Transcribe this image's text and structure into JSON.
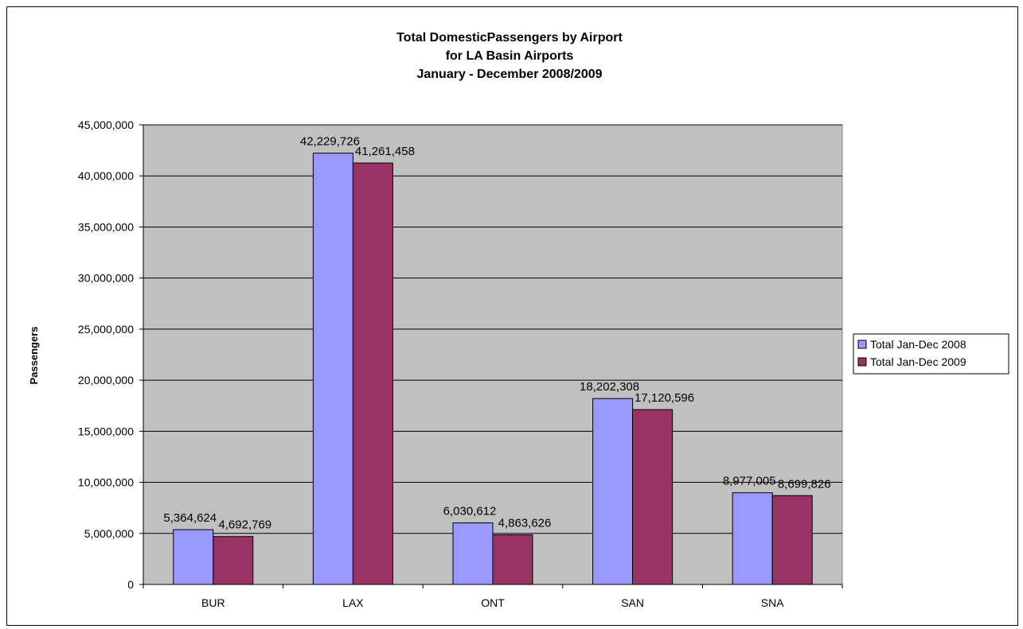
{
  "chart_data": {
    "type": "bar",
    "title": [
      "Total DomesticPassengers by Airport",
      "for LA Basin Airports",
      "January - December 2008/2009"
    ],
    "xlabel": "",
    "ylabel": "Passengers",
    "categories": [
      "BUR",
      "LAX",
      "ONT",
      "SAN",
      "SNA"
    ],
    "ylim": [
      0,
      45000000
    ],
    "yticks": [
      0,
      5000000,
      10000000,
      15000000,
      20000000,
      25000000,
      30000000,
      35000000,
      40000000,
      45000000
    ],
    "ytick_labels": [
      "0",
      "5,000,000",
      "10,000,000",
      "15,000,000",
      "20,000,000",
      "25,000,000",
      "30,000,000",
      "35,000,000",
      "40,000,000",
      "45,000,000"
    ],
    "grid": true,
    "legend_position": "right",
    "plot_background": "#c0c0c0",
    "series": [
      {
        "name": "Total Jan-Dec 2008",
        "color": "#9999ff",
        "values": [
          5364624,
          42229726,
          6030612,
          18202308,
          8977005
        ],
        "labels": [
          "5,364,624",
          "42,229,726",
          "6,030,612",
          "18,202,308",
          "8,977,005"
        ]
      },
      {
        "name": "Total Jan-Dec 2009",
        "color": "#993366",
        "values": [
          4692769,
          41261458,
          4863626,
          17120596,
          8699826
        ],
        "labels": [
          "4,692,769",
          "41,261,458",
          "4,863,626",
          "17,120,596",
          "8,699,826"
        ]
      }
    ]
  }
}
